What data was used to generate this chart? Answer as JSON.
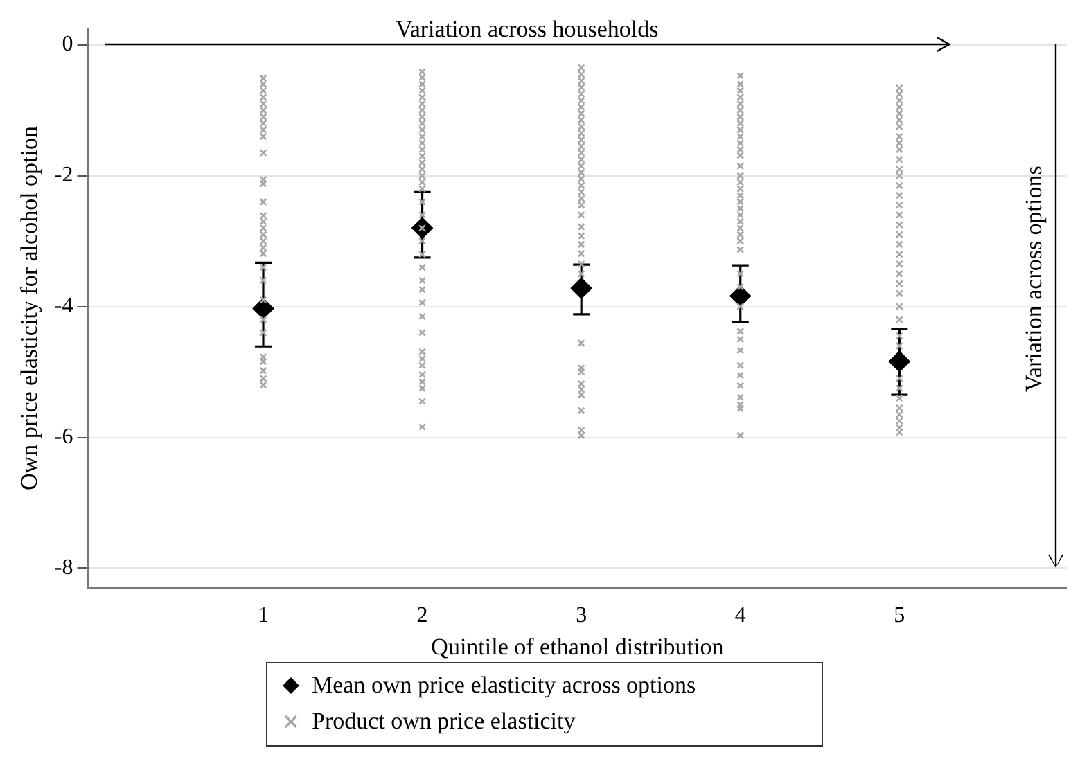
{
  "chart_data": {
    "type": "scatter",
    "xlabel": "Quintile of ethanol distribution",
    "ylabel": "Own price elasticity for alcohol option",
    "annotations": [
      "Variation across households",
      "Variation across options"
    ],
    "xlim": [
      -0.1,
      6.05
    ],
    "xticks": [
      1,
      2,
      3,
      4,
      5
    ],
    "ylim": [
      -8.3,
      0.25
    ],
    "yticks": [
      -8,
      -6,
      -4,
      -2,
      0
    ],
    "grid": "y",
    "legend": "bottom",
    "series": [
      {
        "name": "Product own price elasticity",
        "color": "#a6a6a6",
        "marker": "cross",
        "x": [
          1,
          1,
          1,
          1,
          1,
          1,
          1,
          1,
          1,
          1,
          1,
          1,
          1,
          1,
          1,
          1,
          1,
          1,
          1,
          1,
          1,
          1,
          1,
          1,
          1,
          1,
          1,
          1,
          1,
          1,
          1,
          2,
          2,
          2,
          2,
          2,
          2,
          2,
          2,
          2,
          2,
          2,
          2,
          2,
          2,
          2,
          2,
          2,
          2,
          2,
          2,
          2,
          2,
          2,
          2,
          2,
          2,
          2,
          2,
          2,
          2,
          2,
          2,
          2,
          2,
          2,
          2,
          2,
          2,
          3,
          3,
          3,
          3,
          3,
          3,
          3,
          3,
          3,
          3,
          3,
          3,
          3,
          3,
          3,
          3,
          3,
          3,
          3,
          3,
          3,
          3,
          3,
          3,
          3,
          3,
          3,
          3,
          3,
          3,
          3,
          3,
          3,
          3,
          3,
          3,
          3,
          3,
          4,
          4,
          4,
          4,
          4,
          4,
          4,
          4,
          4,
          4,
          4,
          4,
          4,
          4,
          4,
          4,
          4,
          4,
          4,
          4,
          4,
          4,
          4,
          4,
          4,
          4,
          4,
          4,
          4,
          4,
          4,
          4,
          4,
          4,
          4,
          4,
          4,
          4,
          4,
          5,
          5,
          5,
          5,
          5,
          5,
          5,
          5,
          5,
          5,
          5,
          5,
          5,
          5,
          5,
          5,
          5,
          5,
          5,
          5,
          5,
          5,
          5,
          5,
          5,
          5,
          5,
          5,
          5,
          5,
          5,
          5,
          5,
          5,
          5,
          5,
          5
        ],
        "values": [
          -0.51,
          -0.6,
          -0.7,
          -0.8,
          -0.9,
          -1.0,
          -1.1,
          -1.2,
          -1.3,
          -1.4,
          -1.65,
          -2.06,
          -2.12,
          -2.4,
          -2.61,
          -2.7,
          -2.8,
          -2.9,
          -3.0,
          -3.1,
          -3.19,
          -3.4,
          -3.6,
          -3.9,
          -4.2,
          -4.4,
          -4.77,
          -4.84,
          -4.98,
          -5.1,
          -5.2,
          -0.41,
          -0.5,
          -0.6,
          -0.7,
          -0.8,
          -0.9,
          -1.0,
          -1.1,
          -1.2,
          -1.3,
          -1.4,
          -1.5,
          -1.6,
          -1.7,
          -1.8,
          -1.9,
          -2.0,
          -2.1,
          -2.2,
          -2.4,
          -2.6,
          -2.8,
          -3.0,
          -3.2,
          -3.4,
          -3.6,
          -3.74,
          -3.94,
          -4.15,
          -4.4,
          -4.69,
          -4.8,
          -4.9,
          -5.04,
          -5.15,
          -5.25,
          -5.45,
          -5.84,
          -0.35,
          -0.45,
          -0.55,
          -0.65,
          -0.75,
          -0.85,
          -0.95,
          -1.05,
          -1.15,
          -1.25,
          -1.35,
          -1.45,
          -1.55,
          -1.65,
          -1.75,
          -1.85,
          -1.95,
          -2.05,
          -2.15,
          -2.25,
          -2.35,
          -2.45,
          -2.6,
          -2.78,
          -2.92,
          -3.05,
          -3.19,
          -3.35,
          -3.5,
          -4.56,
          -4.94,
          -5.0,
          -5.18,
          -5.27,
          -5.35,
          -5.59,
          -5.89,
          -5.97,
          -0.47,
          -0.6,
          -0.7,
          -0.8,
          -0.9,
          -1.0,
          -1.1,
          -1.2,
          -1.3,
          -1.4,
          -1.5,
          -1.6,
          -1.69,
          -1.85,
          -2.0,
          -2.1,
          -2.2,
          -2.3,
          -2.4,
          -2.5,
          -2.6,
          -2.7,
          -2.8,
          -2.9,
          -3.0,
          -3.13,
          -3.5,
          -3.7,
          -4.0,
          -4.38,
          -4.5,
          -4.67,
          -4.9,
          -5.05,
          -5.21,
          -5.39,
          -5.5,
          -5.56,
          -5.97,
          -0.66,
          -0.75,
          -0.85,
          -0.95,
          -1.05,
          -1.15,
          -1.25,
          -1.4,
          -1.5,
          -1.6,
          -1.75,
          -1.9,
          -2.0,
          -2.15,
          -2.3,
          -2.45,
          -2.6,
          -2.75,
          -2.9,
          -3.05,
          -3.2,
          -3.35,
          -3.5,
          -3.65,
          -3.8,
          -4.0,
          -4.2,
          -4.45,
          -4.6,
          -5.1,
          -5.25,
          -5.4,
          -5.55,
          -5.65,
          -5.75,
          -5.85,
          -5.92
        ]
      },
      {
        "name": "Mean own price elasticity across options",
        "color": "#000000",
        "marker": "diamond",
        "x": [
          1,
          2,
          3,
          4,
          5
        ],
        "values": [
          -4.03,
          -2.8,
          -3.72,
          -3.84,
          -4.84
        ],
        "errors": [
          [
            -4.61,
            -3.33
          ],
          [
            -3.25,
            -2.25
          ],
          [
            -4.12,
            -3.36
          ],
          [
            -4.24,
            -3.37
          ],
          [
            -5.35,
            -4.34
          ]
        ]
      }
    ]
  }
}
